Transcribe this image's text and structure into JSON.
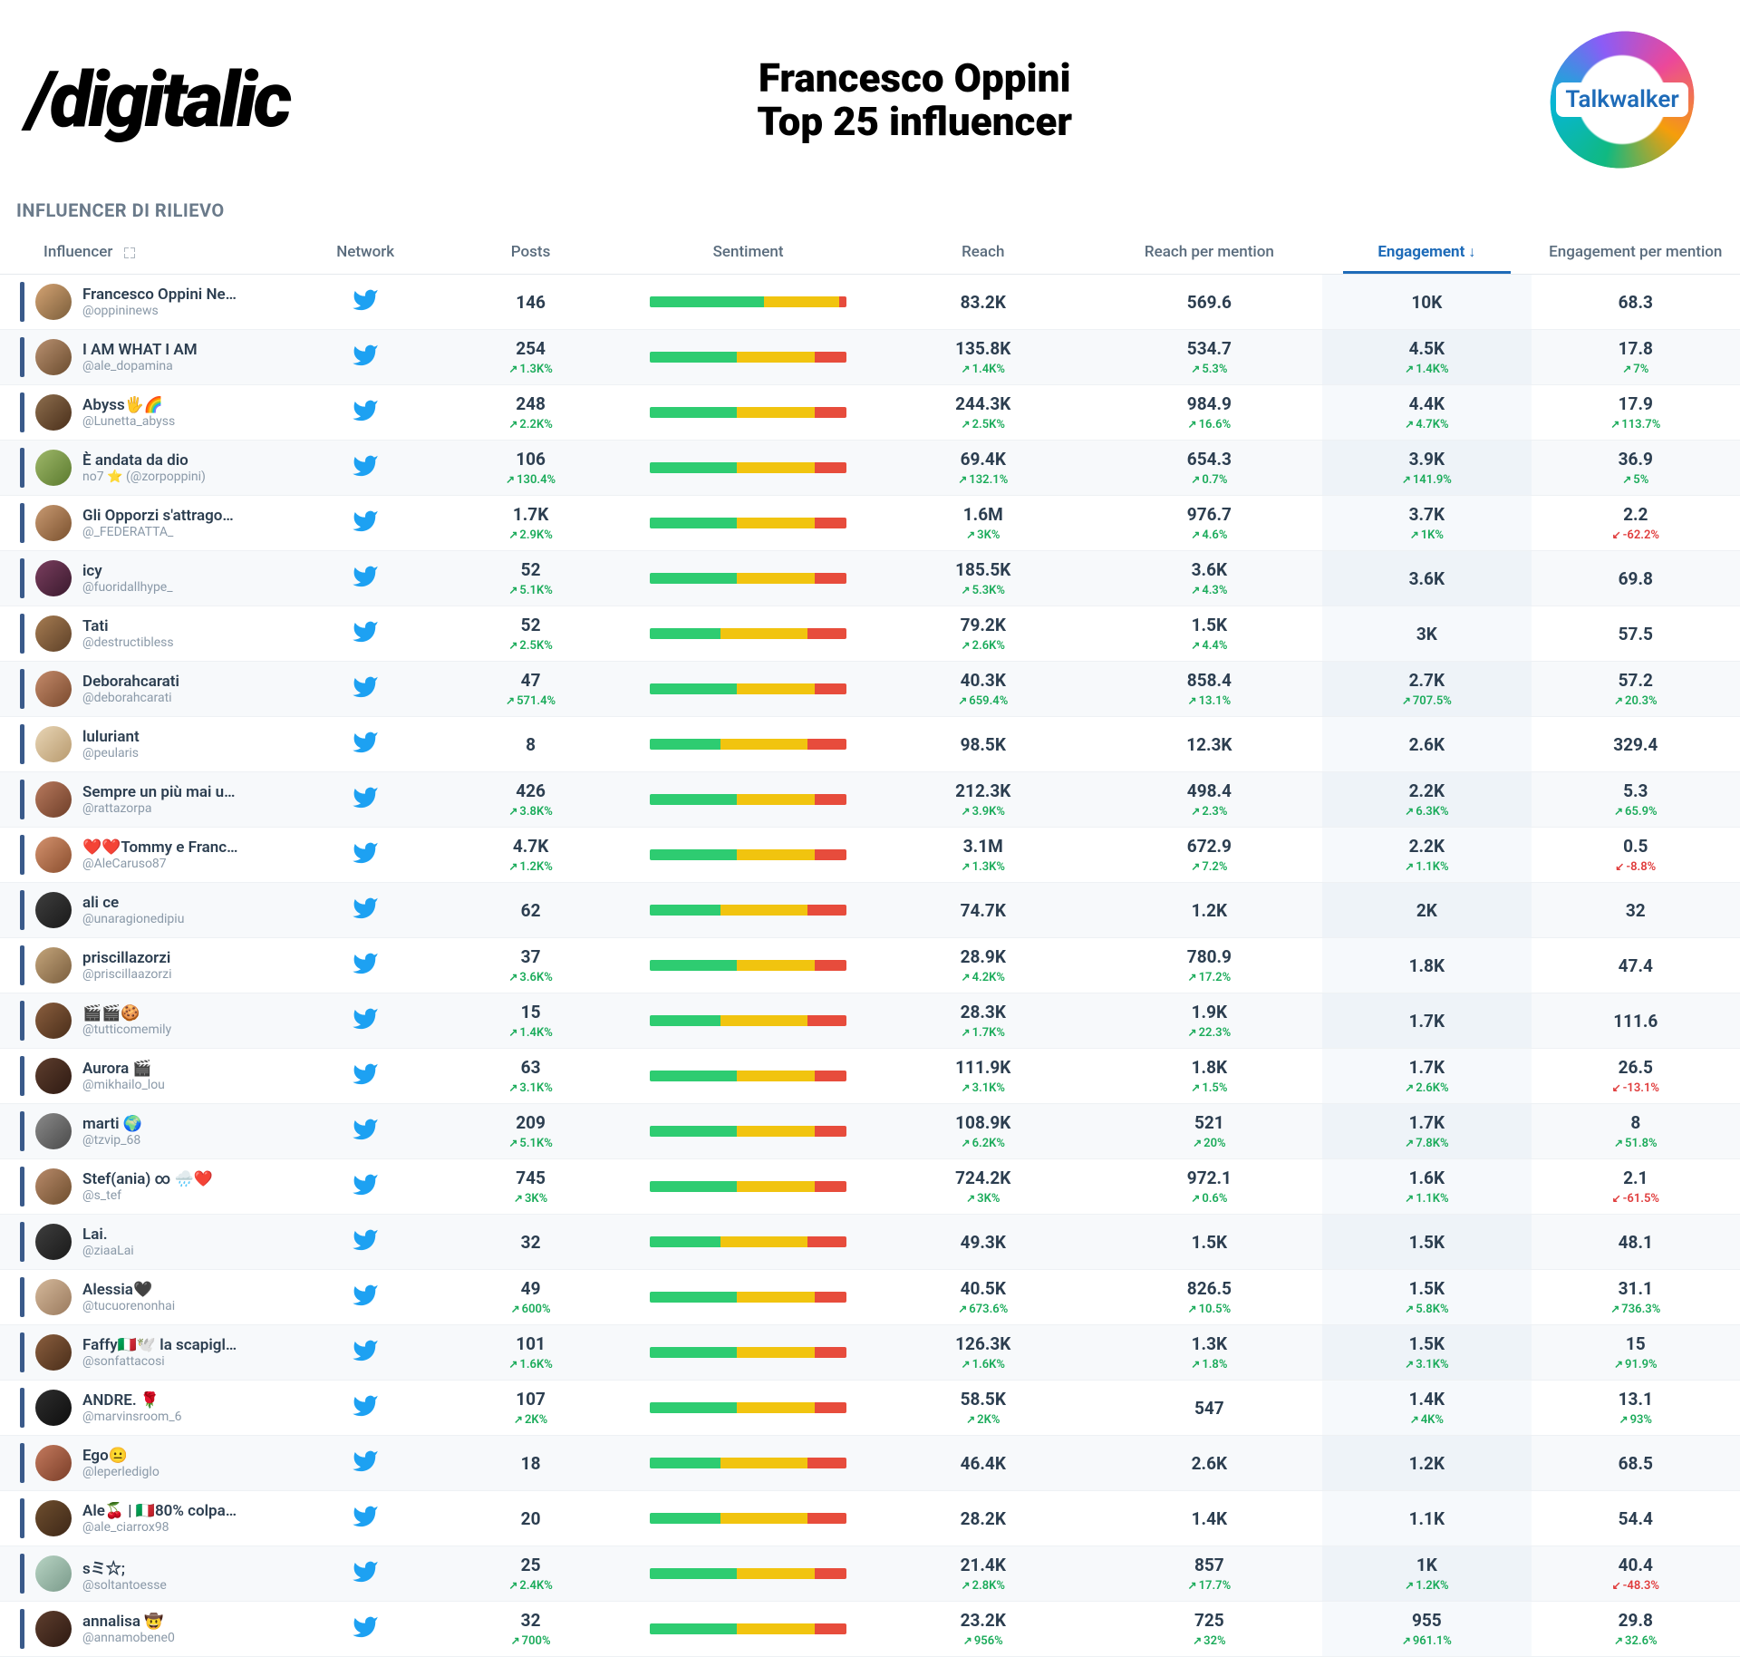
{
  "header": {
    "logo_text": "/digitalic",
    "title_line1": "Francesco Oppini",
    "title_line2": "Top 25 influencer",
    "brand_text": "Talkwalker"
  },
  "section_title": "INFLUENCER DI RILIEVO",
  "columns": {
    "influencer": "Influencer",
    "network": "Network",
    "posts": "Posts",
    "sentiment": "Sentiment",
    "reach": "Reach",
    "reach_per_mention": "Reach per mention",
    "engagement": "Engagement",
    "engagement_per_mention": "Engagement per mention"
  },
  "sorted_column": "engagement",
  "colors": {
    "twitter": "#1da1f2",
    "up": "#1aab5a",
    "down": "#e03c3c",
    "accent": "#1e6bb8",
    "sent_green": "#2ecc71",
    "sent_yellow": "#f1c40f",
    "sent_red": "#e74c3c"
  },
  "rows": [
    {
      "name": "Francesco Oppini Ne…",
      "handle": "@oppininews",
      "avatar_colors": [
        "#d4a373",
        "#7b5e3b"
      ],
      "posts": "146",
      "posts_delta": null,
      "sent": [
        58,
        38,
        4
      ],
      "reach": "83.2K",
      "reach_delta": null,
      "rpm": "569.6",
      "rpm_delta": null,
      "eng": "10K",
      "eng_delta": null,
      "epm": "68.3",
      "epm_delta": null
    },
    {
      "name": "I AM WHAT I AM",
      "handle": "@ale_dopamina",
      "avatar_colors": [
        "#b89070",
        "#6b4c2e"
      ],
      "posts": "254",
      "posts_delta": {
        "dir": "up",
        "val": "1.3K%"
      },
      "sent": [
        44,
        40,
        16
      ],
      "reach": "135.8K",
      "reach_delta": {
        "dir": "up",
        "val": "1.4K%"
      },
      "rpm": "534.7",
      "rpm_delta": {
        "dir": "up",
        "val": "5.3%"
      },
      "eng": "4.5K",
      "eng_delta": {
        "dir": "up",
        "val": "1.4K%"
      },
      "epm": "17.8",
      "epm_delta": {
        "dir": "up",
        "val": "7%"
      }
    },
    {
      "name": "Abyss🖐️🌈",
      "handle": "@Lunetta_abyss",
      "avatar_colors": [
        "#8d6e4e",
        "#4a2f1a"
      ],
      "posts": "248",
      "posts_delta": {
        "dir": "up",
        "val": "2.2K%"
      },
      "sent": [
        44,
        40,
        16
      ],
      "reach": "244.3K",
      "reach_delta": {
        "dir": "up",
        "val": "2.5K%"
      },
      "rpm": "984.9",
      "rpm_delta": {
        "dir": "up",
        "val": "16.6%"
      },
      "eng": "4.4K",
      "eng_delta": {
        "dir": "up",
        "val": "4.7K%"
      },
      "epm": "17.9",
      "epm_delta": {
        "dir": "up",
        "val": "113.7%"
      }
    },
    {
      "name": "È andata da dio",
      "handle": "no7 ⭐ (@zorpoppini)",
      "avatar_colors": [
        "#9fb86a",
        "#5a7a2e"
      ],
      "posts": "106",
      "posts_delta": {
        "dir": "up",
        "val": "130.4%"
      },
      "sent": [
        44,
        40,
        16
      ],
      "reach": "69.4K",
      "reach_delta": {
        "dir": "up",
        "val": "132.1%"
      },
      "rpm": "654.3",
      "rpm_delta": {
        "dir": "up",
        "val": "0.7%"
      },
      "eng": "3.9K",
      "eng_delta": {
        "dir": "up",
        "val": "141.9%"
      },
      "epm": "36.9",
      "epm_delta": {
        "dir": "up",
        "val": "5%"
      }
    },
    {
      "name": "Gli Opporzi s'attrago…",
      "handle": "@_FEDERATTA_",
      "avatar_colors": [
        "#c99a72",
        "#7a512e"
      ],
      "posts": "1.7K",
      "posts_delta": {
        "dir": "up",
        "val": "2.9K%"
      },
      "sent": [
        44,
        40,
        16
      ],
      "reach": "1.6M",
      "reach_delta": {
        "dir": "up",
        "val": "3K%"
      },
      "rpm": "976.7",
      "rpm_delta": {
        "dir": "up",
        "val": "4.6%"
      },
      "eng": "3.7K",
      "eng_delta": {
        "dir": "up",
        "val": "1K%"
      },
      "epm": "2.2",
      "epm_delta": {
        "dir": "down",
        "val": "-62.2%"
      }
    },
    {
      "name": "icy",
      "handle": "@fuoridallhype_",
      "avatar_colors": [
        "#7a3e5e",
        "#3a1a2e"
      ],
      "posts": "52",
      "posts_delta": {
        "dir": "up",
        "val": "5.1K%"
      },
      "sent": [
        44,
        40,
        16
      ],
      "reach": "185.5K",
      "reach_delta": {
        "dir": "up",
        "val": "5.3K%"
      },
      "rpm": "3.6K",
      "rpm_delta": {
        "dir": "up",
        "val": "4.3%"
      },
      "eng": "3.6K",
      "eng_delta": null,
      "epm": "69.8",
      "epm_delta": null
    },
    {
      "name": "Tati",
      "handle": "@destructibless",
      "avatar_colors": [
        "#a67c52",
        "#5e4128"
      ],
      "posts": "52",
      "posts_delta": {
        "dir": "up",
        "val": "2.5K%"
      },
      "sent": [
        36,
        44,
        20
      ],
      "reach": "79.2K",
      "reach_delta": {
        "dir": "up",
        "val": "2.6K%"
      },
      "rpm": "1.5K",
      "rpm_delta": {
        "dir": "up",
        "val": "4.4%"
      },
      "eng": "3K",
      "eng_delta": null,
      "epm": "57.5",
      "epm_delta": null
    },
    {
      "name": "Deborahcarati",
      "handle": "@deborahcarati",
      "avatar_colors": [
        "#c48a6a",
        "#7a4a2e"
      ],
      "posts": "47",
      "posts_delta": {
        "dir": "up",
        "val": "571.4%"
      },
      "sent": [
        44,
        40,
        16
      ],
      "reach": "40.3K",
      "reach_delta": {
        "dir": "up",
        "val": "659.4%"
      },
      "rpm": "858.4",
      "rpm_delta": {
        "dir": "up",
        "val": "13.1%"
      },
      "eng": "2.7K",
      "eng_delta": {
        "dir": "up",
        "val": "707.5%"
      },
      "epm": "57.2",
      "epm_delta": {
        "dir": "up",
        "val": "20.3%"
      }
    },
    {
      "name": "luluriant",
      "handle": "@peularis",
      "avatar_colors": [
        "#e8d5b5",
        "#b89a6e"
      ],
      "posts": "8",
      "posts_delta": null,
      "sent": [
        36,
        44,
        20
      ],
      "reach": "98.5K",
      "reach_delta": null,
      "rpm": "12.3K",
      "rpm_delta": null,
      "eng": "2.6K",
      "eng_delta": null,
      "epm": "329.4",
      "epm_delta": null
    },
    {
      "name": "Sempre un più mai u…",
      "handle": "@rattazorpa",
      "avatar_colors": [
        "#b87a5e",
        "#6e3e28"
      ],
      "posts": "426",
      "posts_delta": {
        "dir": "up",
        "val": "3.8K%"
      },
      "sent": [
        44,
        40,
        16
      ],
      "reach": "212.3K",
      "reach_delta": {
        "dir": "up",
        "val": "3.9K%"
      },
      "rpm": "498.4",
      "rpm_delta": {
        "dir": "up",
        "val": "2.3%"
      },
      "eng": "2.2K",
      "eng_delta": {
        "dir": "up",
        "val": "6.3K%"
      },
      "epm": "5.3",
      "epm_delta": {
        "dir": "up",
        "val": "65.9%"
      }
    },
    {
      "name": "❤️❤️Tommy e Franc…",
      "handle": "@AleCaruso87",
      "avatar_colors": [
        "#d4926e",
        "#8a4e2e"
      ],
      "posts": "4.7K",
      "posts_delta": {
        "dir": "up",
        "val": "1.2K%"
      },
      "sent": [
        44,
        40,
        16
      ],
      "reach": "3.1M",
      "reach_delta": {
        "dir": "up",
        "val": "1.3K%"
      },
      "rpm": "672.9",
      "rpm_delta": {
        "dir": "up",
        "val": "7.2%"
      },
      "eng": "2.2K",
      "eng_delta": {
        "dir": "up",
        "val": "1.1K%"
      },
      "epm": "0.5",
      "epm_delta": {
        "dir": "down",
        "val": "-8.8%"
      }
    },
    {
      "name": "ali ce",
      "handle": "@unaragionedipiu",
      "avatar_colors": [
        "#3e3e3e",
        "#1a1a1a"
      ],
      "posts": "62",
      "posts_delta": null,
      "sent": [
        36,
        44,
        20
      ],
      "reach": "74.7K",
      "reach_delta": null,
      "rpm": "1.2K",
      "rpm_delta": null,
      "eng": "2K",
      "eng_delta": null,
      "epm": "32",
      "epm_delta": null
    },
    {
      "name": "priscillazorzi",
      "handle": "@priscillaazorzi",
      "avatar_colors": [
        "#c4a57b",
        "#7a5e3e"
      ],
      "posts": "37",
      "posts_delta": {
        "dir": "up",
        "val": "3.6K%"
      },
      "sent": [
        44,
        40,
        16
      ],
      "reach": "28.9K",
      "reach_delta": {
        "dir": "up",
        "val": "4.2K%"
      },
      "rpm": "780.9",
      "rpm_delta": {
        "dir": "up",
        "val": "17.2%"
      },
      "eng": "1.8K",
      "eng_delta": null,
      "epm": "47.4",
      "epm_delta": null
    },
    {
      "name": "🎬🎬🍪",
      "handle": "@tutticomemily",
      "avatar_colors": [
        "#8a5e3e",
        "#4a2e1a"
      ],
      "posts": "15",
      "posts_delta": {
        "dir": "up",
        "val": "1.4K%"
      },
      "sent": [
        36,
        44,
        20
      ],
      "reach": "28.3K",
      "reach_delta": {
        "dir": "up",
        "val": "1.7K%"
      },
      "rpm": "1.9K",
      "rpm_delta": {
        "dir": "up",
        "val": "22.3%"
      },
      "eng": "1.7K",
      "eng_delta": null,
      "epm": "111.6",
      "epm_delta": null
    },
    {
      "name": "Aurora 🎬",
      "handle": "@mikhailo_lou",
      "avatar_colors": [
        "#5e3e2e",
        "#2e1a12"
      ],
      "posts": "63",
      "posts_delta": {
        "dir": "up",
        "val": "3.1K%"
      },
      "sent": [
        44,
        40,
        16
      ],
      "reach": "111.9K",
      "reach_delta": {
        "dir": "up",
        "val": "3.1K%"
      },
      "rpm": "1.8K",
      "rpm_delta": {
        "dir": "up",
        "val": "1.5%"
      },
      "eng": "1.7K",
      "eng_delta": {
        "dir": "up",
        "val": "2.6K%"
      },
      "epm": "26.5",
      "epm_delta": {
        "dir": "down",
        "val": "-13.1%"
      }
    },
    {
      "name": "marti 🌍",
      "handle": "@tzvip_68",
      "avatar_colors": [
        "#8a8a8a",
        "#4a4a4a"
      ],
      "posts": "209",
      "posts_delta": {
        "dir": "up",
        "val": "5.1K%"
      },
      "sent": [
        44,
        40,
        16
      ],
      "reach": "108.9K",
      "reach_delta": {
        "dir": "up",
        "val": "6.2K%"
      },
      "rpm": "521",
      "rpm_delta": {
        "dir": "up",
        "val": "20%"
      },
      "eng": "1.7K",
      "eng_delta": {
        "dir": "up",
        "val": "7.8K%"
      },
      "epm": "8",
      "epm_delta": {
        "dir": "up",
        "val": "51.8%"
      }
    },
    {
      "name": "Stef(ania) ∞ 🌧️❤️",
      "handle": "@s_tef",
      "avatar_colors": [
        "#b88a6a",
        "#6e4e2e"
      ],
      "posts": "745",
      "posts_delta": {
        "dir": "up",
        "val": "3K%"
      },
      "sent": [
        44,
        40,
        16
      ],
      "reach": "724.2K",
      "reach_delta": {
        "dir": "up",
        "val": "3K%"
      },
      "rpm": "972.1",
      "rpm_delta": {
        "dir": "up",
        "val": "0.6%"
      },
      "eng": "1.6K",
      "eng_delta": {
        "dir": "up",
        "val": "1.1K%"
      },
      "epm": "2.1",
      "epm_delta": {
        "dir": "down",
        "val": "-61.5%"
      }
    },
    {
      "name": "Lai.",
      "handle": "@ziaaLai",
      "avatar_colors": [
        "#3e3e3e",
        "#1a1a1a"
      ],
      "posts": "32",
      "posts_delta": null,
      "sent": [
        36,
        44,
        20
      ],
      "reach": "49.3K",
      "reach_delta": null,
      "rpm": "1.5K",
      "rpm_delta": null,
      "eng": "1.5K",
      "eng_delta": null,
      "epm": "48.1",
      "epm_delta": null
    },
    {
      "name": "Alessia🖤",
      "handle": "@tucuorenonhai",
      "avatar_colors": [
        "#d4b89a",
        "#9a7a5e"
      ],
      "posts": "49",
      "posts_delta": {
        "dir": "up",
        "val": "600%"
      },
      "sent": [
        44,
        40,
        16
      ],
      "reach": "40.5K",
      "reach_delta": {
        "dir": "up",
        "val": "673.6%"
      },
      "rpm": "826.5",
      "rpm_delta": {
        "dir": "up",
        "val": "10.5%"
      },
      "eng": "1.5K",
      "eng_delta": {
        "dir": "up",
        "val": "5.8K%"
      },
      "epm": "31.1",
      "epm_delta": {
        "dir": "up",
        "val": "736.3%"
      }
    },
    {
      "name": "Faffy🇮🇹🕊️ la scapigl…",
      "handle": "@sonfattacosi",
      "avatar_colors": [
        "#8a5e3e",
        "#4a2e1a"
      ],
      "posts": "101",
      "posts_delta": {
        "dir": "up",
        "val": "1.6K%"
      },
      "sent": [
        44,
        40,
        16
      ],
      "reach": "126.3K",
      "reach_delta": {
        "dir": "up",
        "val": "1.6K%"
      },
      "rpm": "1.3K",
      "rpm_delta": {
        "dir": "up",
        "val": "1.8%"
      },
      "eng": "1.5K",
      "eng_delta": {
        "dir": "up",
        "val": "3.1K%"
      },
      "epm": "15",
      "epm_delta": {
        "dir": "up",
        "val": "91.9%"
      }
    },
    {
      "name": "ANDRE. 🌹",
      "handle": "@marvinsroom_6",
      "avatar_colors": [
        "#2e2e2e",
        "#0e0e0e"
      ],
      "posts": "107",
      "posts_delta": {
        "dir": "up",
        "val": "2K%"
      },
      "sent": [
        44,
        40,
        16
      ],
      "reach": "58.5K",
      "reach_delta": {
        "dir": "up",
        "val": "2K%"
      },
      "rpm": "547",
      "rpm_delta": null,
      "eng": "1.4K",
      "eng_delta": {
        "dir": "up",
        "val": "4K%"
      },
      "epm": "13.1",
      "epm_delta": {
        "dir": "up",
        "val": "93%"
      }
    },
    {
      "name": "Ego😐",
      "handle": "@leperlediglo",
      "avatar_colors": [
        "#c47a5e",
        "#7a3e28"
      ],
      "posts": "18",
      "posts_delta": null,
      "sent": [
        36,
        44,
        20
      ],
      "reach": "46.4K",
      "reach_delta": null,
      "rpm": "2.6K",
      "rpm_delta": null,
      "eng": "1.2K",
      "eng_delta": null,
      "epm": "68.5",
      "epm_delta": null
    },
    {
      "name": "Ale🍒 | 🇮🇹80% colpa…",
      "handle": "@ale_ciarrox98",
      "avatar_colors": [
        "#6e4e2e",
        "#3e2818"
      ],
      "posts": "20",
      "posts_delta": null,
      "sent": [
        36,
        44,
        20
      ],
      "reach": "28.2K",
      "reach_delta": null,
      "rpm": "1.4K",
      "rpm_delta": null,
      "eng": "1.1K",
      "eng_delta": null,
      "epm": "54.4",
      "epm_delta": null
    },
    {
      "name": "sミ☆;",
      "handle": "@soltantoesse",
      "avatar_colors": [
        "#b8d4c4",
        "#7a9a8a"
      ],
      "posts": "25",
      "posts_delta": {
        "dir": "up",
        "val": "2.4K%"
      },
      "sent": [
        44,
        40,
        16
      ],
      "reach": "21.4K",
      "reach_delta": {
        "dir": "up",
        "val": "2.8K%"
      },
      "rpm": "857",
      "rpm_delta": {
        "dir": "up",
        "val": "17.7%"
      },
      "eng": "1K",
      "eng_delta": {
        "dir": "up",
        "val": "1.2K%"
      },
      "epm": "40.4",
      "epm_delta": {
        "dir": "down",
        "val": "-48.3%"
      }
    },
    {
      "name": "annalisa 🤠",
      "handle": "@annamobene0",
      "avatar_colors": [
        "#5e3e2e",
        "#2e1a12"
      ],
      "posts": "32",
      "posts_delta": {
        "dir": "up",
        "val": "700%"
      },
      "sent": [
        44,
        40,
        16
      ],
      "reach": "23.2K",
      "reach_delta": {
        "dir": "up",
        "val": "956%"
      },
      "rpm": "725",
      "rpm_delta": {
        "dir": "up",
        "val": "32%"
      },
      "eng": "955",
      "eng_delta": {
        "dir": "up",
        "val": "961.1%"
      },
      "epm": "29.8",
      "epm_delta": {
        "dir": "up",
        "val": "32.6%"
      }
    }
  ]
}
